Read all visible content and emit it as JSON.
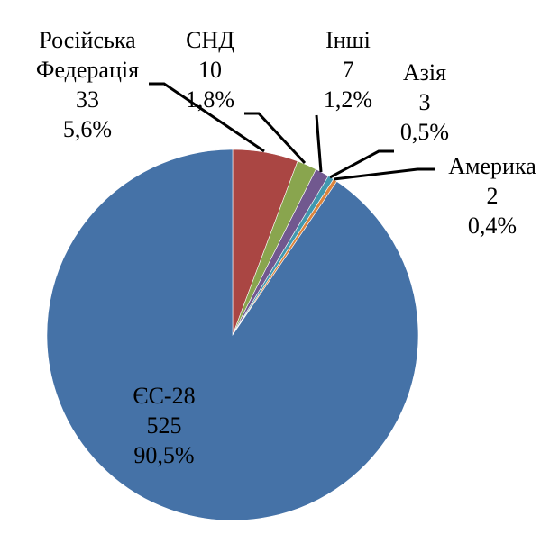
{
  "chart_data": {
    "type": "pie",
    "title": "",
    "start": "top",
    "direction": "clockwise",
    "slices": [
      {
        "name": "Російська Федерація",
        "name_lines": [
          "Російська",
          "Федерація"
        ],
        "value": 33,
        "percent": "5,6%",
        "color": "#AA4643"
      },
      {
        "name": "СНД",
        "name_lines": [
          "СНД"
        ],
        "value": 10,
        "percent": "1,8%",
        "color": "#89A54E"
      },
      {
        "name": "Інші",
        "name_lines": [
          "Інші"
        ],
        "value": 7,
        "percent": "1,2%",
        "color": "#71588F"
      },
      {
        "name": "Азія",
        "name_lines": [
          "Азія"
        ],
        "value": 3,
        "percent": "0,5%",
        "color": "#4198AF"
      },
      {
        "name": "Америка",
        "name_lines": [
          "Америка"
        ],
        "value": 2,
        "percent": "0,4%",
        "color": "#DB843D"
      },
      {
        "name": "ЄС-28",
        "name_lines": [
          "ЄС-28"
        ],
        "value": 525,
        "percent": "90,5%",
        "color": "#4572A7"
      }
    ]
  }
}
